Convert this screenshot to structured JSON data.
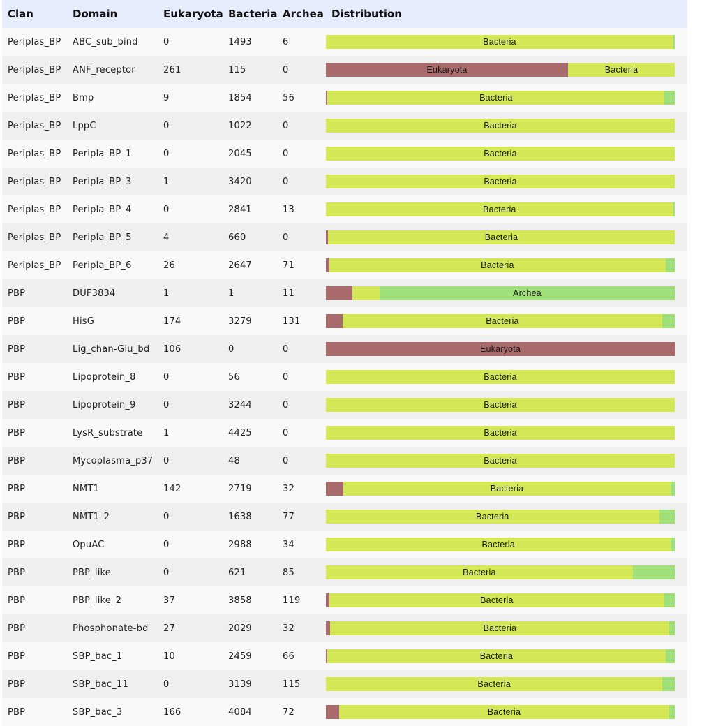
{
  "colors": {
    "eukaryota": "#a86a6a",
    "bacteria": "#d4e857",
    "archea": "#a0e07a"
  },
  "table": {
    "headers": [
      "Clan",
      "Domain",
      "Eukaryota",
      "Bacteria",
      "Archea",
      "Distribution"
    ]
  },
  "chart_data": {
    "type": "table",
    "segment_labels": [
      "Eukaryota",
      "Bacteria",
      "Archea"
    ],
    "rows": [
      {
        "clan": "Periplas_BP",
        "domain": "ABC_sub_bind",
        "eukaryota": 0,
        "bacteria": 1493,
        "archea": 6
      },
      {
        "clan": "Periplas_BP",
        "domain": "ANF_receptor",
        "eukaryota": 261,
        "bacteria": 115,
        "archea": 0
      },
      {
        "clan": "Periplas_BP",
        "domain": "Bmp",
        "eukaryota": 9,
        "bacteria": 1854,
        "archea": 56
      },
      {
        "clan": "Periplas_BP",
        "domain": "LppC",
        "eukaryota": 0,
        "bacteria": 1022,
        "archea": 0
      },
      {
        "clan": "Periplas_BP",
        "domain": "Peripla_BP_1",
        "eukaryota": 0,
        "bacteria": 2045,
        "archea": 0
      },
      {
        "clan": "Periplas_BP",
        "domain": "Peripla_BP_3",
        "eukaryota": 1,
        "bacteria": 3420,
        "archea": 0
      },
      {
        "clan": "Periplas_BP",
        "domain": "Peripla_BP_4",
        "eukaryota": 0,
        "bacteria": 2841,
        "archea": 13
      },
      {
        "clan": "Periplas_BP",
        "domain": "Peripla_BP_5",
        "eukaryota": 4,
        "bacteria": 660,
        "archea": 0
      },
      {
        "clan": "Periplas_BP",
        "domain": "Peripla_BP_6",
        "eukaryota": 26,
        "bacteria": 2647,
        "archea": 71
      },
      {
        "clan": "PBP",
        "domain": "DUF3834",
        "eukaryota": 1,
        "bacteria": 1,
        "archea": 11
      },
      {
        "clan": "PBP",
        "domain": "HisG",
        "eukaryota": 174,
        "bacteria": 3279,
        "archea": 131
      },
      {
        "clan": "PBP",
        "domain": "Lig_chan-Glu_bd",
        "eukaryota": 106,
        "bacteria": 0,
        "archea": 0
      },
      {
        "clan": "PBP",
        "domain": "Lipoprotein_8",
        "eukaryota": 0,
        "bacteria": 56,
        "archea": 0
      },
      {
        "clan": "PBP",
        "domain": "Lipoprotein_9",
        "eukaryota": 0,
        "bacteria": 3244,
        "archea": 0
      },
      {
        "clan": "PBP",
        "domain": "LysR_substrate",
        "eukaryota": 1,
        "bacteria": 4425,
        "archea": 0
      },
      {
        "clan": "PBP",
        "domain": "Mycoplasma_p37",
        "eukaryota": 0,
        "bacteria": 48,
        "archea": 0
      },
      {
        "clan": "PBP",
        "domain": "NMT1",
        "eukaryota": 142,
        "bacteria": 2719,
        "archea": 32
      },
      {
        "clan": "PBP",
        "domain": "NMT1_2",
        "eukaryota": 0,
        "bacteria": 1638,
        "archea": 77
      },
      {
        "clan": "PBP",
        "domain": "OpuAC",
        "eukaryota": 0,
        "bacteria": 2988,
        "archea": 34
      },
      {
        "clan": "PBP",
        "domain": "PBP_like",
        "eukaryota": 0,
        "bacteria": 621,
        "archea": 85
      },
      {
        "clan": "PBP",
        "domain": "PBP_like_2",
        "eukaryota": 37,
        "bacteria": 3858,
        "archea": 119
      },
      {
        "clan": "PBP",
        "domain": "Phosphonate-bd",
        "eukaryota": 27,
        "bacteria": 2029,
        "archea": 32
      },
      {
        "clan": "PBP",
        "domain": "SBP_bac_1",
        "eukaryota": 10,
        "bacteria": 2459,
        "archea": 66
      },
      {
        "clan": "PBP",
        "domain": "SBP_bac_11",
        "eukaryota": 0,
        "bacteria": 3139,
        "archea": 115
      },
      {
        "clan": "PBP",
        "domain": "SBP_bac_3",
        "eukaryota": 166,
        "bacteria": 4084,
        "archea": 72
      }
    ]
  }
}
